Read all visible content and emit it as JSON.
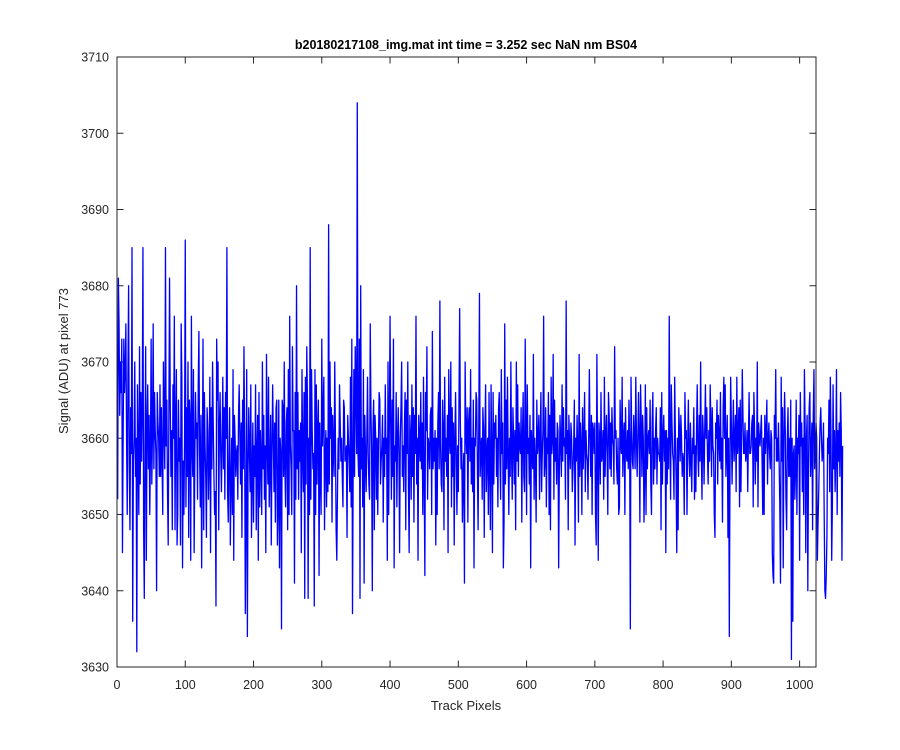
{
  "chart_data": {
    "type": "line",
    "title": "b20180217108_img.mat int time = 3.252 sec  NaN nm BS04",
    "xlabel": "Track Pixels",
    "ylabel": "Signal (ADU) at pixel 773",
    "xlim": [
      0,
      1024
    ],
    "ylim": [
      3630,
      3710
    ],
    "xticks": [
      0,
      100,
      200,
      300,
      400,
      500,
      600,
      700,
      800,
      900,
      1000
    ],
    "yticks": [
      3630,
      3640,
      3650,
      3660,
      3670,
      3680,
      3690,
      3700,
      3710
    ],
    "xtick_labels": [
      "0",
      "100",
      "200",
      "300",
      "400",
      "500",
      "600",
      "700",
      "800",
      "900",
      "1000"
    ],
    "ytick_labels": [
      "3630",
      "3640",
      "3650",
      "3660",
      "3670",
      "3680",
      "3690",
      "3700",
      "3710"
    ],
    "grid": false,
    "line_color": "#0000ff",
    "series": [
      {
        "x_start": 1,
        "x_step": 1,
        "values": [
          3652,
          3681,
          3675,
          3663,
          3670,
          3666,
          3673,
          3645,
          3660,
          3673,
          3666,
          3669,
          3675,
          3660,
          3650,
          3668,
          3680,
          3656,
          3648,
          3664,
          3658,
          3685,
          3636,
          3657,
          3660,
          3670,
          3655,
          3660,
          3632,
          3667,
          3658,
          3650,
          3672,
          3654,
          3666,
          3657,
          3664,
          3685,
          3648,
          3639,
          3659,
          3672,
          3644,
          3662,
          3667,
          3656,
          3663,
          3650,
          3658,
          3673,
          3654,
          3661,
          3675,
          3656,
          3666,
          3661,
          3658,
          3640,
          3666,
          3662,
          3660,
          3655,
          3667,
          3655,
          3664,
          3657,
          3650,
          3670,
          3662,
          3656,
          3685,
          3659,
          3665,
          3653,
          3646,
          3663,
          3681,
          3665,
          3655,
          3661,
          3648,
          3667,
          3660,
          3676,
          3648,
          3662,
          3669,
          3646,
          3650,
          3665,
          3657,
          3660,
          3646,
          3675,
          3668,
          3643,
          3657,
          3650,
          3660,
          3686,
          3651,
          3664,
          3655,
          3670,
          3647,
          3665,
          3662,
          3644,
          3676,
          3659,
          3655,
          3669,
          3645,
          3657,
          3666,
          3660,
          3662,
          3652,
          3667,
          3674,
          3658,
          3651,
          3663,
          3643,
          3656,
          3673,
          3648,
          3666,
          3659,
          3655,
          3647,
          3664,
          3661,
          3652,
          3657,
          3668,
          3645,
          3664,
          3656,
          3670,
          3662,
          3655,
          3650,
          3653,
          3638,
          3673,
          3665,
          3670,
          3648,
          3661,
          3666,
          3658,
          3653,
          3660,
          3668,
          3656,
          3664,
          3652,
          3666,
          3660,
          3685,
          3653,
          3649,
          3658,
          3664,
          3646,
          3654,
          3660,
          3650,
          3669,
          3644,
          3663,
          3660,
          3655,
          3658,
          3659,
          3652,
          3663,
          3667,
          3660,
          3654,
          3662,
          3647,
          3665,
          3656,
          3672,
          3660,
          3637,
          3650,
          3669,
          3634,
          3656,
          3664,
          3658,
          3653,
          3667,
          3647,
          3655,
          3662,
          3649,
          3659,
          3655,
          3667,
          3648,
          3658,
          3663,
          3644,
          3666,
          3651,
          3661,
          3657,
          3650,
          3670,
          3656,
          3663,
          3652,
          3659,
          3645,
          3671,
          3660,
          3654,
          3668,
          3651,
          3656,
          3663,
          3646,
          3658,
          3667,
          3660,
          3653,
          3662,
          3649,
          3664,
          3665,
          3646,
          3651,
          3665,
          3643,
          3660,
          3658,
          3635,
          3665,
          3664,
          3655,
          3670,
          3656,
          3651,
          3662,
          3664,
          3648,
          3669,
          3650,
          3676,
          3659,
          3656,
          3650,
          3672,
          3661,
          3661,
          3641,
          3666,
          3652,
          3680,
          3656,
          3666,
          3652,
          3661,
          3657,
          3662,
          3645,
          3669,
          3658,
          3653,
          3666,
          3639,
          3668,
          3654,
          3672,
          3665,
          3639,
          3660,
          3650,
          3685,
          3652,
          3669,
          3661,
          3656,
          3658,
          3638,
          3669,
          3650,
          3667,
          3654,
          3661,
          3665,
          3642,
          3662,
          3655,
          3650,
          3673,
          3659,
          3663,
          3668,
          3648,
          3658,
          3661,
          3651,
          3660,
          3653,
          3688,
          3654,
          3670,
          3660,
          3664,
          3649,
          3663,
          3658,
          3655,
          3670,
          3660,
          3648,
          3644,
          3653,
          3660,
          3656,
          3667,
          3662,
          3657,
          3660,
          3655,
          3651,
          3665,
          3664,
          3657,
          3658,
          3659,
          3647,
          3663,
          3660,
          3657,
          3653,
          3668,
          3651,
          3673,
          3637,
          3656,
          3669,
          3655,
          3672,
          3666,
          3658,
          3704,
          3658,
          3655,
          3673,
          3639,
          3680,
          3656,
          3660,
          3651,
          3669,
          3641,
          3663,
          3658,
          3653,
          3660,
          3668,
          3658,
          3654,
          3652,
          3675,
          3664,
          3658,
          3640,
          3661,
          3665,
          3648,
          3663,
          3660,
          3652,
          3660,
          3650,
          3659,
          3666,
          3665,
          3654,
          3657,
          3659,
          3663,
          3649,
          3660,
          3655,
          3667,
          3658,
          3660,
          3644,
          3670,
          3650,
          3662,
          3676,
          3661,
          3652,
          3665,
          3655,
          3673,
          3643,
          3659,
          3657,
          3666,
          3651,
          3660,
          3664,
          3658,
          3645,
          3660,
          3664,
          3670,
          3655,
          3659,
          3653,
          3661,
          3666,
          3648,
          3665,
          3658,
          3670,
          3653,
          3645,
          3663,
          3660,
          3652,
          3667,
          3655,
          3664,
          3649,
          3663,
          3658,
          3676,
          3654,
          3660,
          3644,
          3663,
          3660,
          3657,
          3666,
          3656,
          3662,
          3650,
          3668,
          3655,
          3642,
          3666,
          3661,
          3672,
          3652,
          3660,
          3659,
          3656,
          3663,
          3664,
          3650,
          3674,
          3656,
          3660,
          3657,
          3661,
          3646,
          3660,
          3650,
          3662,
          3666,
          3656,
          3678,
          3659,
          3654,
          3653,
          3665,
          3661,
          3648,
          3668,
          3657,
          3660,
          3655,
          3663,
          3645,
          3669,
          3660,
          3658,
          3670,
          3651,
          3664,
          3655,
          3662,
          3646,
          3660,
          3666,
          3657,
          3650,
          3659,
          3653,
          3665,
          3677,
          3662,
          3656,
          3660,
          3649,
          3655,
          3658,
          3641,
          3670,
          3661,
          3658,
          3664,
          3649,
          3662,
          3664,
          3657,
          3669,
          3654,
          3660,
          3653,
          3665,
          3643,
          3660,
          3659,
          3666,
          3665,
          3656,
          3648,
          3662,
          3679,
          3655,
          3658,
          3660,
          3652,
          3664,
          3661,
          3647,
          3661,
          3667,
          3653,
          3658,
          3660,
          3650,
          3666,
          3656,
          3648,
          3667,
          3658,
          3645,
          3666,
          3654,
          3662,
          3660,
          3663,
          3655,
          3660,
          3651,
          3664,
          3666,
          3657,
          3652,
          3669,
          3658,
          3662,
          3643,
          3649,
          3675,
          3654,
          3665,
          3656,
          3668,
          3658,
          3650,
          3660,
          3655,
          3670,
          3658,
          3652,
          3664,
          3660,
          3654,
          3661,
          3648,
          3670,
          3657,
          3667,
          3655,
          3662,
          3659,
          3658,
          3664,
          3649,
          3660,
          3666,
          3655,
          3653,
          3673,
          3661,
          3650,
          3667,
          3658,
          3660,
          3654,
          3663,
          3643,
          3661,
          3658,
          3656,
          3671,
          3652,
          3660,
          3657,
          3649,
          3665,
          3658,
          3660,
          3663,
          3652,
          3660,
          3666,
          3653,
          3658,
          3661,
          3676,
          3655,
          3657,
          3664,
          3651,
          3660,
          3658,
          3666,
          3650,
          3663,
          3648,
          3668,
          3658,
          3660,
          3671,
          3652,
          3665,
          3657,
          3660,
          3654,
          3662,
          3661,
          3643,
          3656,
          3663,
          3659,
          3655,
          3667,
          3657,
          3664,
          3659,
          3660,
          3652,
          3678,
          3658,
          3661,
          3648,
          3663,
          3659,
          3656,
          3662,
          3660,
          3653,
          3656,
          3659,
          3665,
          3646,
          3660,
          3657,
          3663,
          3658,
          3649,
          3671,
          3655,
          3662,
          3659,
          3650,
          3664,
          3656,
          3660,
          3666,
          3653,
          3661,
          3658,
          3657,
          3652,
          3660,
          3669,
          3660,
          3655,
          3663,
          3650,
          3662,
          3661,
          3658,
          3662,
          3650,
          3646,
          3671,
          3658,
          3644,
          3662,
          3660,
          3654,
          3666,
          3657,
          3658,
          3661,
          3652,
          3668,
          3655,
          3660,
          3663,
          3658,
          3650,
          3666,
          3663,
          3656,
          3662,
          3655,
          3664,
          3660,
          3659,
          3654,
          3672,
          3660,
          3661,
          3656,
          3654,
          3660,
          3650,
          3651,
          3665,
          3659,
          3658,
          3668,
          3655,
          3660,
          3662,
          3650,
          3664,
          3658,
          3657,
          3661,
          3656,
          3665,
          3659,
          3635,
          3668,
          3661,
          3657,
          3656,
          3663,
          3660,
          3656,
          3668,
          3660,
          3655,
          3660,
          3666,
          3660,
          3649,
          3667,
          3662,
          3655,
          3663,
          3660,
          3649,
          3655,
          3667,
          3650,
          3664,
          3656,
          3660,
          3661,
          3658,
          3665,
          3654,
          3650,
          3662,
          3666,
          3654,
          3660,
          3656,
          3661,
          3664,
          3654,
          3660,
          3658,
          3658,
          3657,
          3664,
          3648,
          3666,
          3654,
          3660,
          3663,
          3657,
          3661,
          3645,
          3661,
          3654,
          3660,
          3656,
          3676,
          3660,
          3652,
          3667,
          3662,
          3658,
          3657,
          3652,
          3668,
          3660,
          3655,
          3645,
          3660,
          3648,
          3664,
          3661,
          3657,
          3663,
          3660,
          3655,
          3658,
          3657,
          3650,
          3666,
          3660,
          3661,
          3650,
          3659,
          3665,
          3658,
          3655,
          3662,
          3657,
          3653,
          3660,
          3658,
          3664,
          3652,
          3659,
          3653,
          3661,
          3667,
          3658,
          3655,
          3663,
          3657,
          3670,
          3658,
          3652,
          3663,
          3660,
          3654,
          3661,
          3667,
          3660,
          3664,
          3658,
          3654,
          3661,
          3657,
          3667,
          3662,
          3655,
          3664,
          3659,
          3658,
          3650,
          3647,
          3662,
          3660,
          3665,
          3654,
          3663,
          3660,
          3657,
          3666,
          3656,
          3660,
          3649,
          3664,
          3668,
          3660,
          3667,
          3655,
          3659,
          3663,
          3647,
          3660,
          3634,
          3656,
          3668,
          3662,
          3654,
          3660,
          3665,
          3657,
          3660,
          3663,
          3653,
          3668,
          3658,
          3660,
          3664,
          3651,
          3665,
          3653,
          3660,
          3669,
          3663,
          3658,
          3658,
          3662,
          3657,
          3658,
          3661,
          3653,
          3660,
          3666,
          3658,
          3658,
          3659,
          3662,
          3663,
          3651,
          3666,
          3661,
          3654,
          3660,
          3657,
          3670,
          3651,
          3662,
          3660,
          3659,
          3661,
          3663,
          3657,
          3650,
          3660,
          3650,
          3663,
          3658,
          3661,
          3665,
          3654,
          3660,
          3662,
          3658,
          3656,
          3661,
          3660,
          3645,
          3642,
          3641,
          3663,
          3660,
          3669,
          3657,
          3660,
          3657,
          3662,
          3657,
          3651,
          3641,
          3668,
          3657,
          3664,
          3643,
          3660,
          3666,
          3661,
          3652,
          3648,
          3660,
          3664,
          3655,
          3660,
          3655,
          3665,
          3631,
          3660,
          3636,
          3658,
          3659,
          3652,
          3656,
          3665,
          3650,
          3660,
          3658,
          3663,
          3644,
          3666,
          3659,
          3662,
          3653,
          3660,
          3650,
          3669,
          3662,
          3645,
          3660,
          3663,
          3640,
          3656,
          3664,
          3666,
          3655,
          3658,
          3662,
          3648,
          3663,
          3669,
          3656,
          3659,
          3662,
          3660,
          3644,
          3649,
          3653,
          3658,
          3662,
          3664,
          3660,
          3657,
          3658,
          3662,
          3650,
          3640,
          3639,
          3642,
          3647,
          3660,
          3658,
          3665,
          3653,
          3668,
          3660,
          3644,
          3651,
          3667,
          3656,
          3661,
          3653,
          3658,
          3669,
          3650,
          3661,
          3657,
          3662,
          3655,
          3666,
          3661,
          3644,
          3659
        ]
      }
    ]
  }
}
